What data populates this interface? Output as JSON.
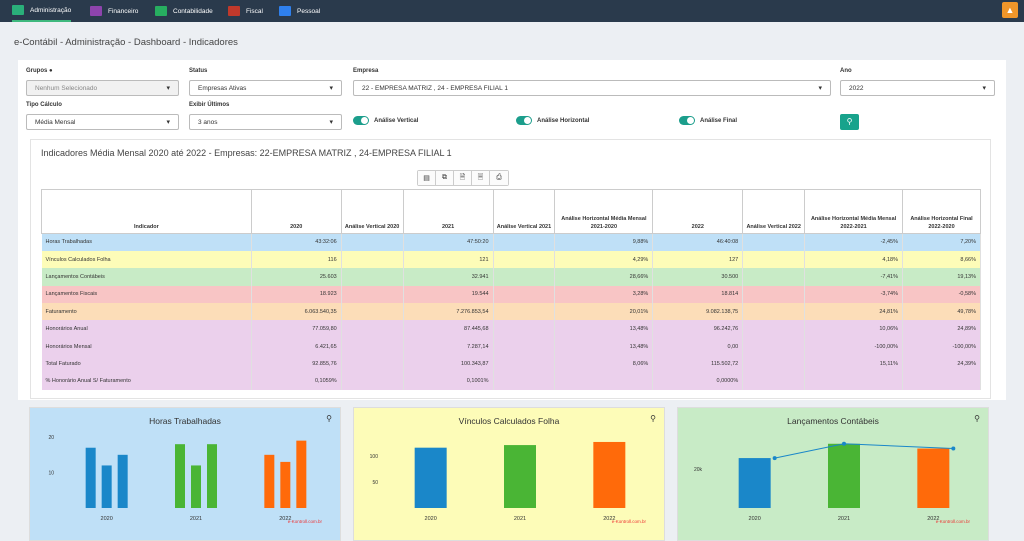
{
  "topbar": {
    "items": [
      {
        "label": "Administração",
        "color": "#2ab07a"
      },
      {
        "label": "Financeiro",
        "color": "#8e44ad"
      },
      {
        "label": "Contabilidade",
        "color": "#27ae60"
      },
      {
        "label": "Fiscal",
        "color": "#c0392b"
      },
      {
        "label": "Pessoal",
        "color": "#2f80ed"
      }
    ]
  },
  "breadcrumb": "e-Contábil - Administração - Dashboard - Indicadores",
  "filters": {
    "grupos_label": "Grupos",
    "grupos_value": "Nenhum Selecionado",
    "status_label": "Status",
    "status_value": "Empresas Ativas",
    "empresa_label": "Empresa",
    "empresa_value": "22 - EMPRESA MATRIZ , 24 - EMPRESA FILIAL 1",
    "ano_label": "Ano",
    "ano_value": "2022",
    "tipo_label": "Tipo Cálculo",
    "tipo_value": "Média Mensal",
    "exibir_label": "Exibir Últimos",
    "exibir_value": "3 anos",
    "toggle_vertical": "Análise Vertical",
    "toggle_horizontal": "Análise Horizontal",
    "toggle_final": "Análise Final"
  },
  "panel": {
    "title": "Indicadores Média Mensal 2020 até 2022 - Empresas: 22-EMPRESA MATRIZ , 24-EMPRESA FILIAL 1"
  },
  "table": {
    "headers": [
      "Indicador",
      "2020",
      "Análise Vertical 2020",
      "2021",
      "Análise Vertical 2021",
      "Análise Horizontal Média Mensal 2021-2020",
      "2022",
      "Análise Vertical 2022",
      "Análise Horizontal Média Mensal 2022-2021",
      "Análise Horizontal Final 2022-2020"
    ],
    "rows": [
      {
        "bg": "#bfe0f7",
        "cells": [
          "Horas Trabalhadas",
          "43:32:06",
          "",
          "47:50:20",
          "",
          "9,88%",
          "46:40:08",
          "",
          "-2,45%",
          "7,20%"
        ]
      },
      {
        "bg": "#fdfcb8",
        "cells": [
          "Vínculos Calculados Folha",
          "116",
          "",
          "121",
          "",
          "4,29%",
          "127",
          "",
          "4,18%",
          "8,66%"
        ]
      },
      {
        "bg": "#c8ebc6",
        "cells": [
          "Lançamentos Contábeis",
          "25.603",
          "",
          "32.941",
          "",
          "28,66%",
          "30.500",
          "",
          "-7,41%",
          "19,13%"
        ]
      },
      {
        "bg": "#f8c5c5",
        "cells": [
          "Lançamentos Fiscais",
          "18.923",
          "",
          "19.544",
          "",
          "3,28%",
          "18.814",
          "",
          "-3,74%",
          "-0,58%"
        ]
      },
      {
        "bg": "#fcddb8",
        "cells": [
          "Faturamento",
          "6.063.540,35",
          "",
          "7.276.853,54",
          "",
          "20,01%",
          "9.082.138,75",
          "",
          "24,81%",
          "49,78%"
        ]
      },
      {
        "bg": "#ebd0ec",
        "cells": [
          "Honorários Anual",
          "77.059,80",
          "",
          "87.445,68",
          "",
          "13,48%",
          "96.242,76",
          "",
          "10,06%",
          "24,89%"
        ]
      },
      {
        "bg": "#ebd0ec",
        "cells": [
          "Honorários Mensal",
          "6.421,65",
          "",
          "7.287,14",
          "",
          "13,48%",
          "0,00",
          "",
          "-100,00%",
          "-100,00%"
        ]
      },
      {
        "bg": "#ebd0ec",
        "cells": [
          "Total Faturado",
          "92.855,76",
          "",
          "100.343,87",
          "",
          "8,06%",
          "115.502,72",
          "",
          "15,11%",
          "24,39%"
        ]
      },
      {
        "bg": "#ebd0ec",
        "cells": [
          "% Honorário Anual S/ Faturamento",
          "0,1059%",
          "",
          "0,1001%",
          "",
          "",
          "0,0000%",
          "",
          "",
          ""
        ]
      }
    ]
  },
  "charts": {
    "credit": "e-Kontroll.com.br",
    "colors": [
      "#1a87c9",
      "#4ab535",
      "#ff6a0a"
    ]
  },
  "chart_data": [
    {
      "type": "bar",
      "title": "Horas Trabalhadas",
      "categories": [
        "2020",
        "2021",
        "2022"
      ],
      "yticks": [
        "10",
        "20"
      ],
      "ylim": [
        0,
        22
      ],
      "groups": [
        [
          17,
          12,
          15
        ],
        [
          18,
          12,
          18
        ],
        [
          15,
          13,
          19
        ]
      ],
      "bg": "#bfe0f7"
    },
    {
      "type": "bar",
      "title": "Vínculos Calculados Folha",
      "categories": [
        "2020",
        "2021",
        "2022"
      ],
      "yticks": [
        "50",
        "100"
      ],
      "ylim": [
        0,
        150
      ],
      "values": [
        116,
        121,
        127
      ],
      "bg": "#fdfcb8"
    },
    {
      "type": "bar",
      "title": "Lançamentos Contábeis",
      "categories": [
        "2020",
        "2021",
        "2022"
      ],
      "yticks": [
        "20k"
      ],
      "ylim": [
        0,
        40000
      ],
      "values": [
        25603,
        32941,
        30500
      ],
      "line": [
        25603,
        32941,
        30500
      ],
      "bg": "#c8ebc6"
    }
  ]
}
